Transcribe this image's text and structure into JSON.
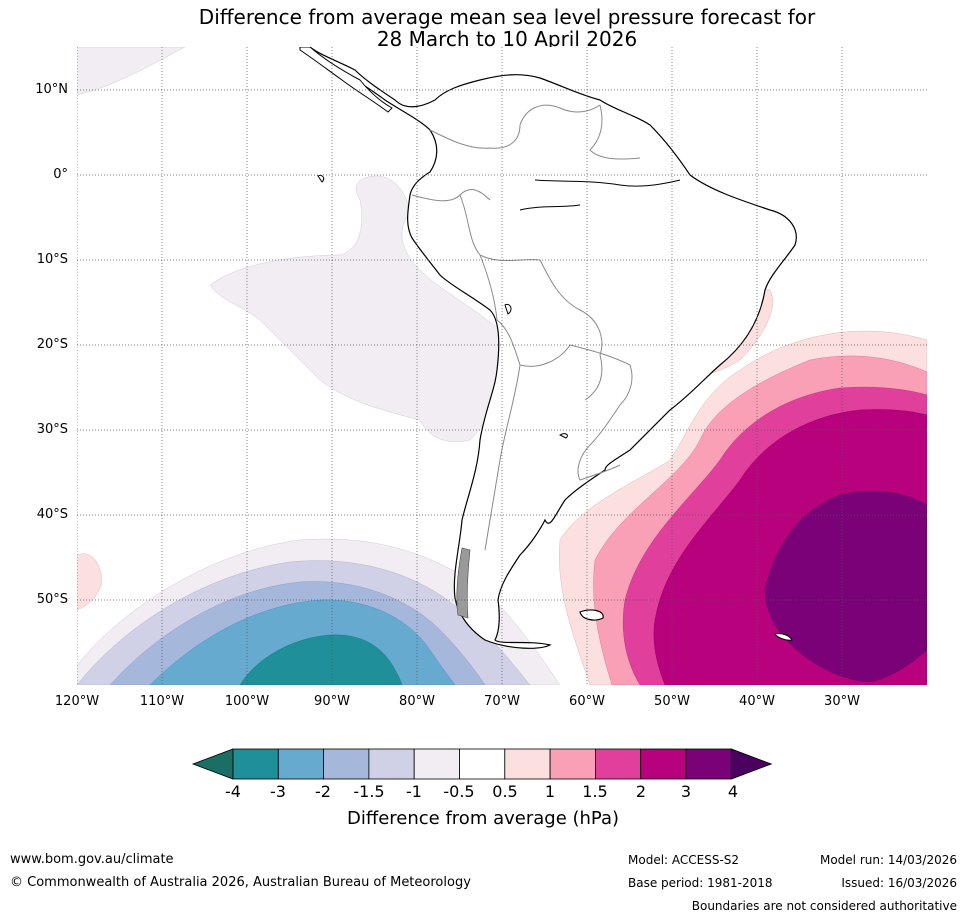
{
  "title": {
    "line1": "Difference from average mean sea level pressure forecast for",
    "line2": "28 March to 10 April 2026"
  },
  "map": {
    "lat_labels": [
      "10°N",
      "0°",
      "10°S",
      "20°S",
      "30°S",
      "40°S",
      "50°S"
    ],
    "lon_labels": [
      "120°W",
      "110°W",
      "100°W",
      "90°W",
      "80°W",
      "70°W",
      "60°W",
      "50°W",
      "40°W",
      "30°W"
    ]
  },
  "colorbar": {
    "title": "Difference from average (hPa)",
    "tick_labels": [
      "-4",
      "-3",
      "-2",
      "-1.5",
      "-1",
      "-0.5",
      "0.5",
      "1",
      "1.5",
      "2",
      "3",
      "4"
    ],
    "colors": [
      "#1a6e63",
      "#1f9099",
      "#66aad0",
      "#a5b7da",
      "#d0d0e6",
      "#f1edf3",
      "#ffffff",
      "#fcdfdf",
      "#f99fb6",
      "#e03f9c",
      "#b8017d",
      "#7a0177",
      "#4c005f"
    ]
  },
  "footer": {
    "url": "www.bom.gov.au/climate",
    "copyright": "© Commonwealth of Australia 2026, Australian Bureau of Meteorology",
    "model": "Model: ACCESS-S2",
    "base_period": "Base period: 1981-2018",
    "model_run": "Model run: 14/03/2026",
    "issued": "Issued: 16/03/2026",
    "disclaimer": "Boundaries are not considered authoritative"
  }
}
